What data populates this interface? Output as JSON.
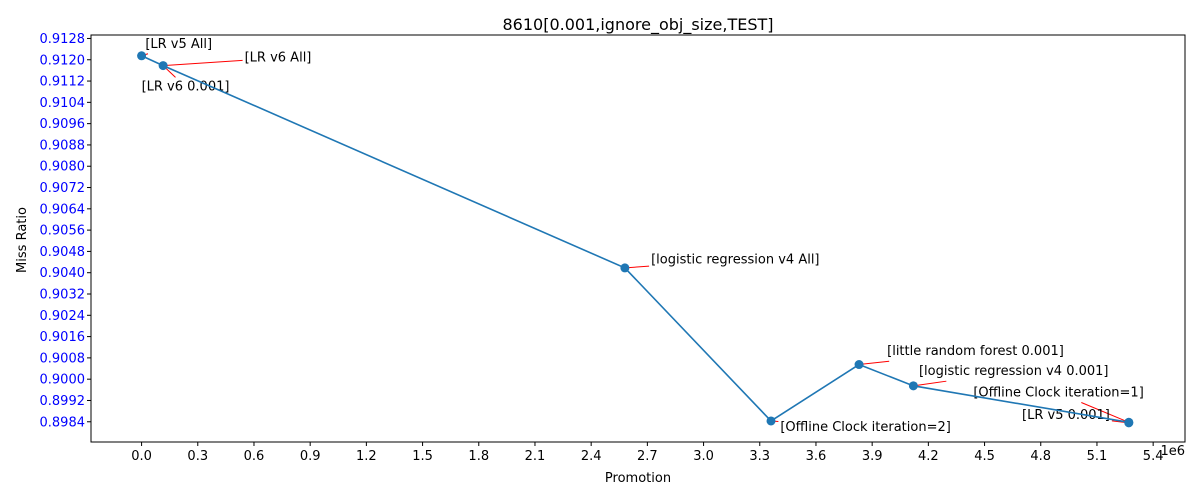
{
  "chart_data": {
    "type": "line",
    "title": "8610[0.001,ignore_obj_size,TEST]",
    "xlabel": "Promotion",
    "ylabel": "Miss Ratio",
    "x_offset_label": "1e6",
    "xlim": [
      -0.27,
      5.57
    ],
    "ylim": [
      0.89764,
      0.91293
    ],
    "x_ticks": [
      0.0,
      0.3,
      0.6,
      0.9,
      1.2,
      1.5,
      1.8,
      2.1,
      2.4,
      2.7,
      3.0,
      3.3,
      3.6,
      3.9,
      4.2,
      4.5,
      4.8,
      5.1,
      5.4
    ],
    "x_tick_labels": [
      "0.0",
      "0.3",
      "0.6",
      "0.9",
      "1.2",
      "1.5",
      "1.8",
      "2.1",
      "2.4",
      "2.7",
      "3.0",
      "3.3",
      "3.6",
      "3.9",
      "4.2",
      "4.5",
      "4.8",
      "5.1",
      "5.4"
    ],
    "y_ticks": [
      0.8984,
      0.8992,
      0.9,
      0.9008,
      0.9016,
      0.9024,
      0.9032,
      0.904,
      0.9048,
      0.9056,
      0.9064,
      0.9072,
      0.908,
      0.9088,
      0.9096,
      0.9104,
      0.9112,
      0.912,
      0.9128
    ],
    "y_tick_labels": [
      "0.8984",
      "0.8992",
      "0.9000",
      "0.9008",
      "0.9016",
      "0.9024",
      "0.9032",
      "0.9040",
      "0.9048",
      "0.9056",
      "0.9064",
      "0.9072",
      "0.9080",
      "0.9088",
      "0.9096",
      "0.9104",
      "0.9112",
      "0.9120",
      "0.9128"
    ],
    "y_tick_color": "#0000ff",
    "grid": false,
    "series": [
      {
        "color": "#1f77b4",
        "x": [
          0.0,
          0.115,
          2.58,
          3.36,
          3.83,
          4.12,
          5.27,
          5.27
        ],
        "y": [
          0.91215,
          0.91178,
          0.90418,
          0.89843,
          0.90055,
          0.89975,
          0.89838,
          0.89836
        ]
      }
    ],
    "annotations": [
      {
        "text": "[LR v5 All]",
        "point_index": 0,
        "text_x": 0.02,
        "text_y": 0.91245
      },
      {
        "text": "[LR v6 All]",
        "point_index": 1,
        "text_x": 0.55,
        "text_y": 0.91193
      },
      {
        "text": "[LR v6 0.001]",
        "point_index": 1,
        "text_x": 0.0,
        "text_y": 0.91085
      },
      {
        "text": "[logistic regression v4 All]",
        "point_index": 2,
        "text_x": 2.72,
        "text_y": 0.90435
      },
      {
        "text": "[Offline Clock iteration=2]",
        "point_index": 3,
        "text_x": 3.41,
        "text_y": 0.89805
      },
      {
        "text": "[little random forest 0.001]",
        "point_index": 4,
        "text_x": 3.98,
        "text_y": 0.9009
      },
      {
        "text": "[logistic regression v4 0.001]",
        "point_index": 5,
        "text_x": 4.15,
        "text_y": 0.90015
      },
      {
        "text": "[Offline Clock iteration=1]",
        "point_index": 6,
        "text_x": 4.44,
        "text_y": 0.89935
      },
      {
        "text": "[LR v5 0.001]",
        "point_index": 7,
        "text_x": 4.7,
        "text_y": 0.8985
      }
    ]
  }
}
